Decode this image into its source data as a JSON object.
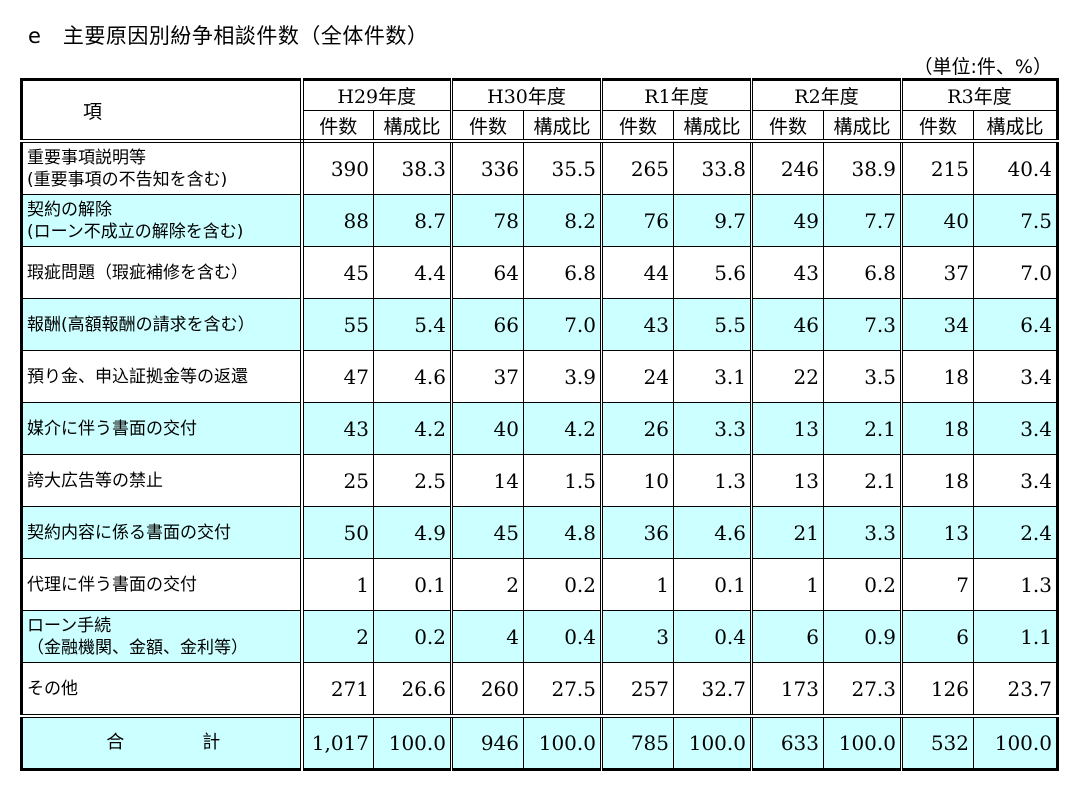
{
  "title": "e　主要原因別紛争相談件数（全体件数）",
  "unit": "（単位:件、%）",
  "header": {
    "item_label": "項　　目",
    "years": [
      "H29年度",
      "H30年度",
      "R1年度",
      "R2年度",
      "R3年度"
    ],
    "sub_count": "件数",
    "sub_ratio": "構成比"
  },
  "rows": [
    {
      "label": "重要事項説明等\n(重要事項の不告知を含む)",
      "values": [
        "390",
        "38.3",
        "336",
        "35.5",
        "265",
        "33.8",
        "246",
        "38.9",
        "215",
        "40.4"
      ]
    },
    {
      "label": "契約の解除\n(ローン不成立の解除を含む)",
      "values": [
        "88",
        "8.7",
        "78",
        "8.2",
        "76",
        "9.7",
        "49",
        "7.7",
        "40",
        "7.5"
      ]
    },
    {
      "label": "瑕疵問題（瑕疵補修を含む）",
      "values": [
        "45",
        "4.4",
        "64",
        "6.8",
        "44",
        "5.6",
        "43",
        "6.8",
        "37",
        "7.0"
      ]
    },
    {
      "label": "報酬(高額報酬の請求を含む）",
      "values": [
        "55",
        "5.4",
        "66",
        "7.0",
        "43",
        "5.5",
        "46",
        "7.3",
        "34",
        "6.4"
      ]
    },
    {
      "label": "預り金、申込証拠金等の返還",
      "values": [
        "47",
        "4.6",
        "37",
        "3.9",
        "24",
        "3.1",
        "22",
        "3.5",
        "18",
        "3.4"
      ]
    },
    {
      "label": "媒介に伴う書面の交付",
      "values": [
        "43",
        "4.2",
        "40",
        "4.2",
        "26",
        "3.3",
        "13",
        "2.1",
        "18",
        "3.4"
      ]
    },
    {
      "label": "誇大広告等の禁止",
      "values": [
        "25",
        "2.5",
        "14",
        "1.5",
        "10",
        "1.3",
        "13",
        "2.1",
        "18",
        "3.4"
      ]
    },
    {
      "label": "契約内容に係る書面の交付",
      "values": [
        "50",
        "4.9",
        "45",
        "4.8",
        "36",
        "4.6",
        "21",
        "3.3",
        "13",
        "2.4"
      ]
    },
    {
      "label": "代理に伴う書面の交付",
      "values": [
        "1",
        "0.1",
        "2",
        "0.2",
        "1",
        "0.1",
        "1",
        "0.2",
        "7",
        "1.3"
      ]
    },
    {
      "label": "ローン手続\n（金融機関、金額、金利等）",
      "values": [
        "2",
        "0.2",
        "4",
        "0.4",
        "3",
        "0.4",
        "6",
        "0.9",
        "6",
        "1.1"
      ]
    },
    {
      "label": "その他",
      "values": [
        "271",
        "26.6",
        "260",
        "27.5",
        "257",
        "32.7",
        "173",
        "27.3",
        "126",
        "23.7"
      ]
    }
  ],
  "total": {
    "label": "合　計",
    "values": [
      "1,017",
      "100.0",
      "946",
      "100.0",
      "785",
      "100.0",
      "633",
      "100.0",
      "532",
      "100.0"
    ]
  },
  "colors": {
    "highlight": "#ccffff",
    "border": "#000000"
  }
}
